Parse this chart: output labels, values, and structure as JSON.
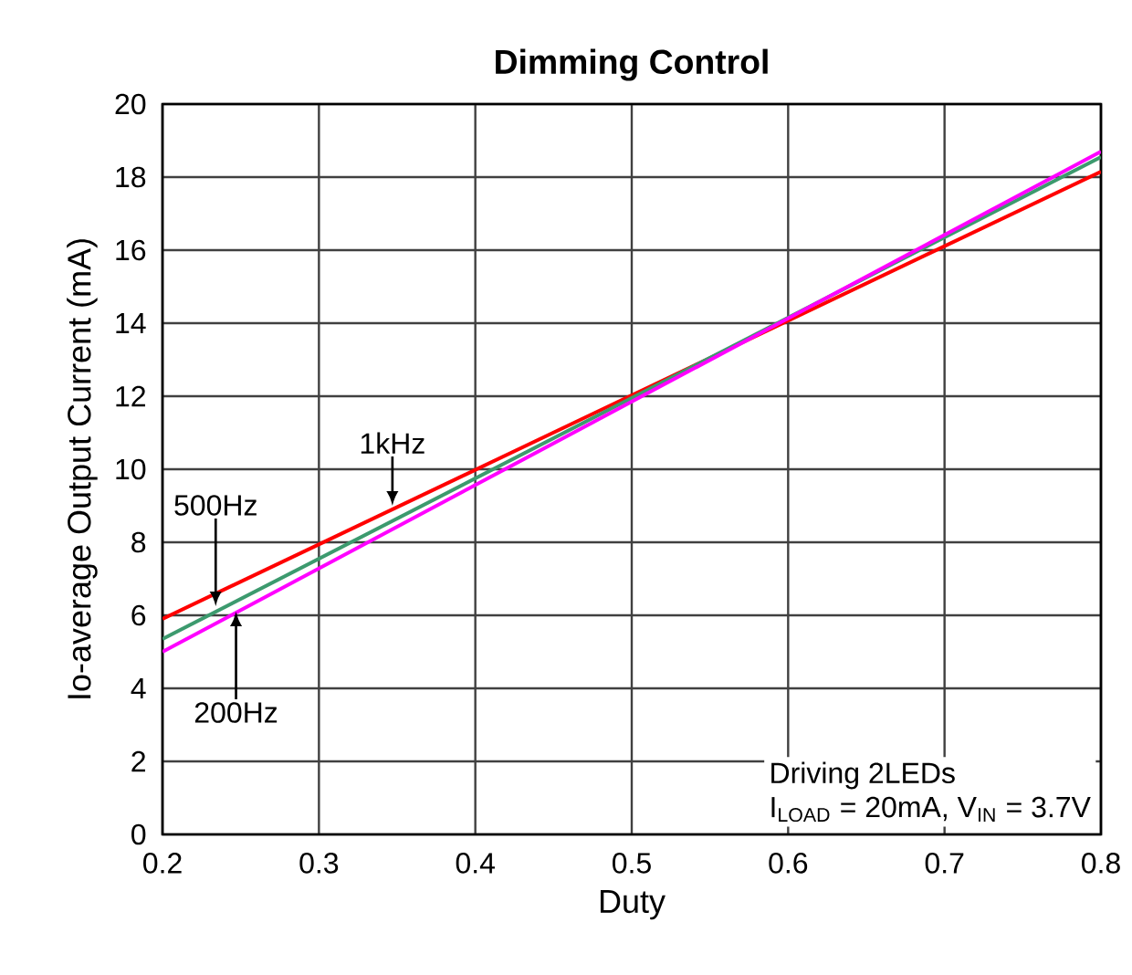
{
  "chart_data": {
    "type": "line",
    "title": "Dimming Control",
    "xlabel": "Duty",
    "ylabel": "Io-average Output Current (mA)",
    "x": [
      0.2,
      0.8
    ],
    "series": [
      {
        "color": "#ff0000",
        "values": [
          5.9,
          18.15
        ]
      },
      {
        "color": "#3c9a6e",
        "values": [
          5.35,
          18.55
        ]
      },
      {
        "color": "#ff00ff",
        "values": [
          5.0,
          18.7
        ]
      }
    ],
    "xlim": [
      0.2,
      0.8
    ],
    "xticks": [
      0.2,
      0.3,
      0.4,
      0.5,
      0.6,
      0.7,
      0.8
    ],
    "ylim": [
      0,
      20
    ],
    "yticks": [
      0,
      2,
      4,
      6,
      8,
      10,
      12,
      14,
      16,
      18,
      20
    ],
    "grid": true,
    "marker": "none",
    "line_style": "solid",
    "annotations": [
      {
        "text": "1kHz",
        "x": 0.347,
        "y": 9.0
      },
      {
        "text": "500Hz",
        "x": 0.234,
        "y": 6.25
      },
      {
        "text": "200Hz",
        "x": 0.247,
        "y": 6.1
      },
      "Driving 2LEDs",
      "I$_{LOAD}$ = 20mA, V$_{IN}$ = 3.7V"
    ]
  }
}
